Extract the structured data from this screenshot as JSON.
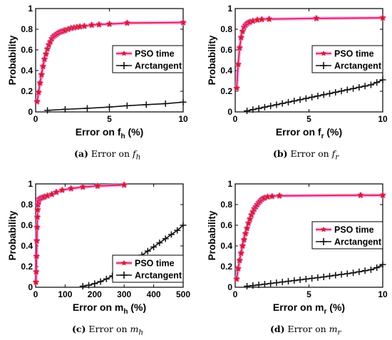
{
  "chart_data": [
    {
      "type": "line",
      "title": "",
      "xlabel_text": "Error on f",
      "xlabel_sub": "h",
      "xlabel_unit": " (%)",
      "ylabel": "Probability",
      "xlim": [
        0,
        10
      ],
      "ylim": [
        0,
        1
      ],
      "xticks": [
        0,
        5,
        10
      ],
      "xtick_labels": [
        "0",
        "5",
        "10"
      ],
      "yticks": [
        0,
        0.2,
        0.4,
        0.6,
        0.8,
        1
      ],
      "ytick_labels": [
        "0",
        "0.2",
        "0.4",
        "0.6",
        "0.8",
        "1"
      ],
      "legend_position": "right-middle",
      "series": [
        {
          "name": "PSO time",
          "color": "#cc2222",
          "glow": "#ff66ff",
          "marker": "star",
          "x": [
            0.1,
            0.2,
            0.3,
            0.4,
            0.5,
            0.6,
            0.7,
            0.8,
            0.9,
            1.0,
            1.1,
            1.2,
            1.3,
            1.4,
            1.5,
            1.6,
            1.7,
            1.8,
            1.9,
            2.0,
            2.2,
            2.4,
            2.6,
            2.8,
            3.0,
            3.3,
            3.8,
            4.3,
            5.0,
            6.2,
            10.0
          ],
          "y": [
            0.1,
            0.19,
            0.28,
            0.36,
            0.44,
            0.51,
            0.56,
            0.61,
            0.65,
            0.68,
            0.71,
            0.73,
            0.74,
            0.75,
            0.76,
            0.77,
            0.775,
            0.78,
            0.785,
            0.79,
            0.8,
            0.81,
            0.815,
            0.82,
            0.825,
            0.83,
            0.84,
            0.845,
            0.85,
            0.86,
            0.865
          ]
        },
        {
          "name": "Arctangent",
          "color": "#111111",
          "marker": "plus",
          "x": [
            0.8,
            2.0,
            3.5,
            5.0,
            6.2,
            7.5,
            8.8,
            10.0
          ],
          "y": [
            0.015,
            0.025,
            0.035,
            0.047,
            0.06,
            0.07,
            0.08,
            0.095
          ]
        }
      ]
    },
    {
      "type": "line",
      "title": "",
      "xlabel_text": "Error on f",
      "xlabel_sub": "r",
      "xlabel_unit": " (%)",
      "ylabel": "Probability",
      "xlim": [
        0,
        10
      ],
      "ylim": [
        0,
        1
      ],
      "xticks": [
        0,
        5,
        10
      ],
      "xtick_labels": [
        "0",
        "5",
        "10"
      ],
      "yticks": [
        0,
        0.2,
        0.4,
        0.6,
        0.8,
        1
      ],
      "ytick_labels": [
        "0",
        "0.2",
        "0.4",
        "0.6",
        "0.8",
        "1"
      ],
      "legend_position": "right-middle",
      "series": [
        {
          "name": "PSO time",
          "color": "#cc2222",
          "glow": "#ff66ff",
          "marker": "star",
          "x": [
            0.1,
            0.2,
            0.3,
            0.4,
            0.5,
            0.6,
            0.7,
            0.8,
            0.9,
            1.0,
            1.2,
            1.5,
            1.8,
            2.3,
            5.5,
            10.0
          ],
          "y": [
            0.23,
            0.46,
            0.62,
            0.72,
            0.78,
            0.82,
            0.84,
            0.855,
            0.865,
            0.87,
            0.88,
            0.89,
            0.895,
            0.898,
            0.905,
            0.91
          ]
        },
        {
          "name": "Arctangent",
          "color": "#111111",
          "marker": "plus",
          "x": [
            0.8,
            1.2,
            1.6,
            2.0,
            2.4,
            2.8,
            3.2,
            3.6,
            4.0,
            4.4,
            4.8,
            5.2,
            5.6,
            6.0,
            6.4,
            6.8,
            7.2,
            7.6,
            8.0,
            8.4,
            8.8,
            9.2,
            9.6,
            10.0
          ],
          "y": [
            0.01,
            0.022,
            0.034,
            0.046,
            0.058,
            0.07,
            0.082,
            0.094,
            0.106,
            0.118,
            0.13,
            0.142,
            0.154,
            0.166,
            0.178,
            0.19,
            0.202,
            0.214,
            0.226,
            0.238,
            0.25,
            0.262,
            0.285,
            0.31
          ]
        }
      ]
    },
    {
      "type": "line",
      "title": "",
      "xlabel_text": "Error on m",
      "xlabel_sub": "h",
      "xlabel_unit": " (%)",
      "ylabel": "Probability",
      "xlim": [
        0,
        500
      ],
      "ylim": [
        0,
        1
      ],
      "xticks": [
        0,
        100,
        200,
        300,
        400,
        500
      ],
      "xtick_labels": [
        "0",
        "100",
        "200",
        "300",
        "400",
        "500"
      ],
      "yticks": [
        0,
        0.2,
        0.4,
        0.6,
        0.8,
        1
      ],
      "ytick_labels": [
        "0",
        "0.2",
        "0.4",
        "0.6",
        "0.8",
        "1"
      ],
      "legend_position": "bottom-right",
      "series": [
        {
          "name": "PSO time",
          "color": "#cc2222",
          "glow": "#ff66ff",
          "marker": "star",
          "x": [
            1,
            2,
            3,
            4,
            5,
            6,
            7,
            8,
            10,
            12,
            15,
            20,
            25,
            30,
            40,
            55,
            70,
            90,
            120,
            160,
            210,
            300
          ],
          "y": [
            0.05,
            0.15,
            0.3,
            0.45,
            0.58,
            0.68,
            0.75,
            0.8,
            0.83,
            0.85,
            0.86,
            0.865,
            0.87,
            0.875,
            0.885,
            0.9,
            0.92,
            0.94,
            0.955,
            0.97,
            0.98,
            0.99
          ]
        },
        {
          "name": "Arctangent",
          "color": "#111111",
          "marker": "plus",
          "x": [
            160,
            180,
            200,
            220,
            240,
            260,
            280,
            300,
            320,
            340,
            360,
            380,
            400,
            420,
            440,
            460,
            480,
            500
          ],
          "y": [
            0.01,
            0.02,
            0.035,
            0.055,
            0.08,
            0.11,
            0.15,
            0.19,
            0.23,
            0.27,
            0.31,
            0.35,
            0.39,
            0.43,
            0.47,
            0.51,
            0.55,
            0.6
          ]
        }
      ]
    },
    {
      "type": "line",
      "title": "",
      "xlabel_text": "Error on m",
      "xlabel_sub": "r",
      "xlabel_unit": " (%)",
      "ylabel": "Probability",
      "xlim": [
        0,
        10
      ],
      "ylim": [
        0,
        1
      ],
      "xticks": [
        0,
        5,
        10
      ],
      "xtick_labels": [
        "0",
        "5",
        "10"
      ],
      "yticks": [
        0,
        0.2,
        0.4,
        0.6,
        0.8,
        1
      ],
      "ytick_labels": [
        "0",
        "0.2",
        "0.4",
        "0.6",
        "0.8",
        "1"
      ],
      "legend_position": "right-middle",
      "series": [
        {
          "name": "PSO time",
          "color": "#cc2222",
          "glow": "#ff66ff",
          "marker": "star",
          "x": [
            0.1,
            0.2,
            0.3,
            0.4,
            0.5,
            0.6,
            0.7,
            0.8,
            0.9,
            1.0,
            1.1,
            1.2,
            1.3,
            1.4,
            1.5,
            1.6,
            1.7,
            1.8,
            1.9,
            2.0,
            2.2,
            2.5,
            3.0,
            8.5,
            10.0
          ],
          "y": [
            0.08,
            0.18,
            0.26,
            0.33,
            0.4,
            0.46,
            0.52,
            0.57,
            0.62,
            0.66,
            0.7,
            0.73,
            0.76,
            0.78,
            0.8,
            0.82,
            0.835,
            0.85,
            0.86,
            0.865,
            0.875,
            0.88,
            0.885,
            0.89,
            0.89
          ]
        },
        {
          "name": "Arctangent",
          "color": "#111111",
          "marker": "plus",
          "x": [
            0.8,
            1.2,
            1.6,
            2.0,
            2.4,
            2.8,
            3.2,
            3.6,
            4.0,
            4.4,
            4.8,
            5.2,
            5.6,
            6.0,
            6.4,
            6.8,
            7.2,
            7.6,
            8.0,
            8.4,
            8.8,
            9.2,
            9.6,
            10.0
          ],
          "y": [
            0.01,
            0.016,
            0.023,
            0.03,
            0.037,
            0.044,
            0.051,
            0.058,
            0.065,
            0.072,
            0.079,
            0.086,
            0.093,
            0.1,
            0.108,
            0.116,
            0.124,
            0.132,
            0.14,
            0.15,
            0.16,
            0.17,
            0.19,
            0.22
          ]
        }
      ]
    }
  ],
  "captions": [
    {
      "letter": "(a)",
      "text": " Error on ",
      "var": "f",
      "sub": "h"
    },
    {
      "letter": "(b)",
      "text": " Error on ",
      "var": "f",
      "sub": "r"
    },
    {
      "letter": "(c)",
      "text": " Error on ",
      "var": "m",
      "sub": "h"
    },
    {
      "letter": "(d)",
      "text": " Error on ",
      "var": "m",
      "sub": "r"
    }
  ]
}
